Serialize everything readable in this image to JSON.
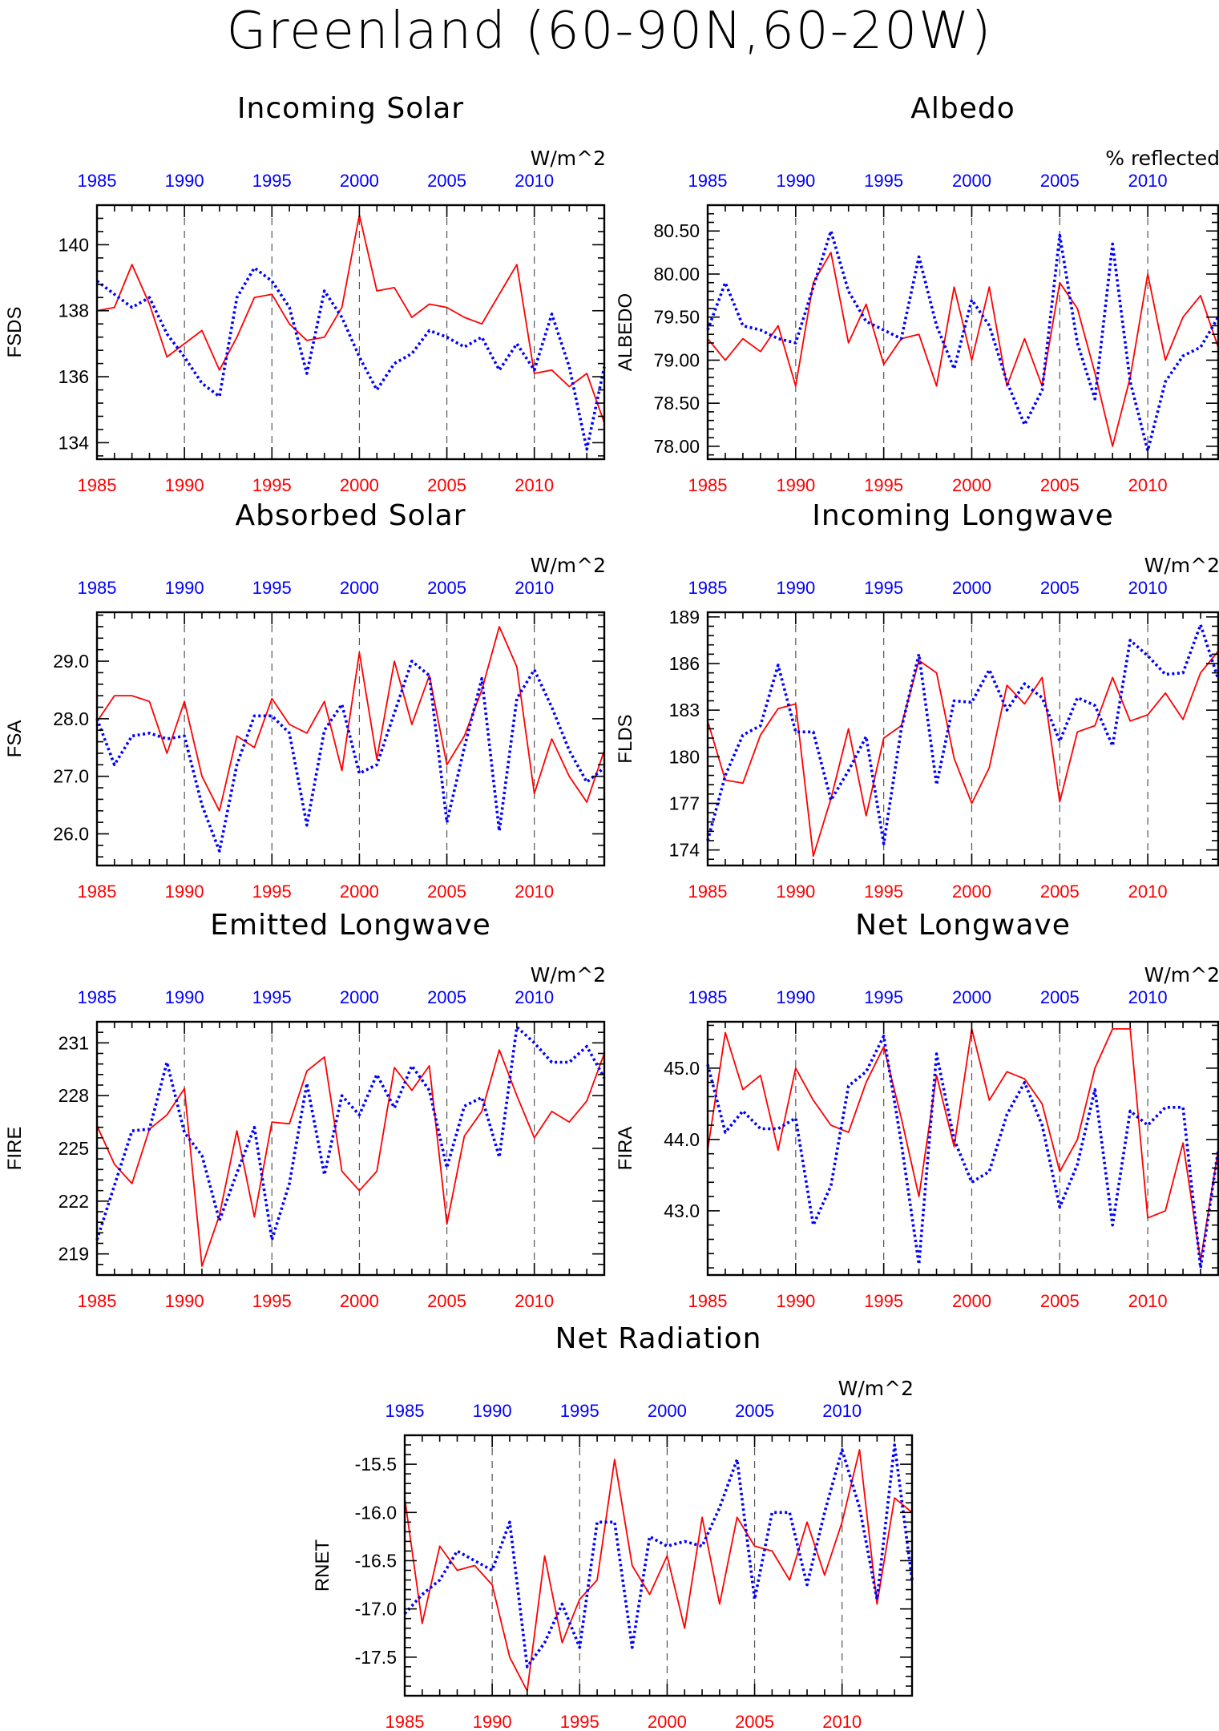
{
  "title": "Greenland (60-90N,60-20W)",
  "colors": {
    "series_a": "#ff0000",
    "series_b": "#0000ff",
    "frame": "#000000",
    "gridline": "#555555"
  },
  "chart_data": [
    {
      "id": "fsds",
      "type": "line",
      "title": "Incoming Solar",
      "unit": "W/m^2",
      "ylabel": "FSDS",
      "xlim": [
        1985,
        2014
      ],
      "ylim": [
        133.5,
        141.2
      ],
      "yticks": [
        134,
        136,
        138,
        140
      ],
      "ytick_labels": [
        "134",
        "136",
        "138",
        "140"
      ],
      "xticks": [
        1985,
        1990,
        1995,
        2000,
        2005,
        2010
      ],
      "xtick_labels": [
        "1985",
        "1990",
        "1995",
        "2000",
        "2005",
        "2010"
      ],
      "x": [
        1985,
        1986,
        1987,
        1988,
        1989,
        1990,
        1991,
        1992,
        1993,
        1994,
        1995,
        1996,
        1997,
        1998,
        1999,
        2000,
        2001,
        2002,
        2003,
        2004,
        2005,
        2006,
        2007,
        2008,
        2009,
        2010,
        2011,
        2012,
        2013,
        2014
      ],
      "series": [
        {
          "values": [
            138.0,
            138.1,
            139.4,
            138.2,
            136.6,
            137.0,
            137.4,
            136.2,
            137.2,
            138.4,
            138.5,
            137.6,
            137.1,
            137.2,
            138.1,
            140.9,
            138.6,
            138.7,
            137.8,
            138.2,
            138.1,
            137.8,
            137.6,
            138.5,
            139.4,
            136.1,
            136.2,
            135.7,
            136.1,
            134.6
          ]
        },
        {
          "values": [
            138.9,
            138.5,
            138.1,
            138.4,
            137.3,
            136.6,
            135.8,
            135.4,
            138.4,
            139.3,
            138.9,
            138.1,
            136.1,
            138.6,
            137.8,
            136.6,
            135.6,
            136.4,
            136.7,
            137.4,
            137.2,
            136.9,
            137.2,
            136.2,
            137.0,
            136.2,
            137.9,
            136.3,
            133.8,
            136.3
          ]
        }
      ]
    },
    {
      "id": "albedo",
      "type": "line",
      "title": "Albedo",
      "unit": "% reflected",
      "ylabel": "ALBEDO",
      "xlim": [
        1985,
        2014
      ],
      "ylim": [
        77.85,
        80.8
      ],
      "yticks": [
        78.0,
        78.5,
        79.0,
        79.5,
        80.0,
        80.5
      ],
      "ytick_labels": [
        "78.00",
        "78.50",
        "79.00",
        "79.50",
        "80.00",
        "80.50"
      ],
      "xticks": [
        1985,
        1990,
        1995,
        2000,
        2005,
        2010
      ],
      "xtick_labels": [
        "1985",
        "1990",
        "1995",
        "2000",
        "2005",
        "2010"
      ],
      "x": [
        1985,
        1986,
        1987,
        1988,
        1989,
        1990,
        1991,
        1992,
        1993,
        1994,
        1995,
        1996,
        1997,
        1998,
        1999,
        2000,
        2001,
        2002,
        2003,
        2004,
        2005,
        2006,
        2007,
        2008,
        2009,
        2010,
        2011,
        2012,
        2013,
        2014
      ],
      "series": [
        {
          "values": [
            79.25,
            79.0,
            79.25,
            79.1,
            79.4,
            78.7,
            79.9,
            80.25,
            79.2,
            79.65,
            78.95,
            79.25,
            79.3,
            78.7,
            79.85,
            79.0,
            79.85,
            78.7,
            79.25,
            78.7,
            79.9,
            79.6,
            78.85,
            78.0,
            78.8,
            80.0,
            79.0,
            79.5,
            79.75,
            79.15
          ]
        },
        {
          "values": [
            79.35,
            79.9,
            79.4,
            79.35,
            79.25,
            79.2,
            79.85,
            80.5,
            79.8,
            79.45,
            79.35,
            79.25,
            80.2,
            79.4,
            78.9,
            79.7,
            79.4,
            78.75,
            78.25,
            78.65,
            80.45,
            79.2,
            78.55,
            80.35,
            78.75,
            77.95,
            78.75,
            79.05,
            79.15,
            79.5
          ]
        }
      ]
    },
    {
      "id": "fsa",
      "type": "line",
      "title": "Absorbed Solar",
      "unit": "W/m^2",
      "ylabel": "FSA",
      "xlim": [
        1985,
        2014
      ],
      "ylim": [
        25.45,
        29.85
      ],
      "yticks": [
        26.0,
        27.0,
        28.0,
        29.0
      ],
      "ytick_labels": [
        "26.0",
        "27.0",
        "28.0",
        "29.0"
      ],
      "xticks": [
        1985,
        1990,
        1995,
        2000,
        2005,
        2010
      ],
      "xtick_labels": [
        "1985",
        "1990",
        "1995",
        "2000",
        "2005",
        "2010"
      ],
      "x": [
        1985,
        1986,
        1987,
        1988,
        1989,
        1990,
        1991,
        1992,
        1993,
        1994,
        1995,
        1996,
        1997,
        1998,
        1999,
        2000,
        2001,
        2002,
        2003,
        2004,
        2005,
        2006,
        2007,
        2008,
        2009,
        2010,
        2011,
        2012,
        2013,
        2014
      ],
      "series": [
        {
          "values": [
            27.95,
            28.4,
            28.4,
            28.3,
            27.4,
            28.3,
            27.0,
            26.4,
            27.7,
            27.5,
            28.35,
            27.9,
            27.75,
            28.3,
            27.1,
            29.15,
            27.3,
            29.0,
            27.9,
            28.75,
            27.2,
            27.7,
            28.5,
            29.6,
            28.9,
            26.7,
            27.65,
            27.0,
            26.55,
            27.45
          ]
        },
        {
          "values": [
            28.0,
            27.2,
            27.7,
            27.75,
            27.65,
            27.7,
            26.5,
            25.7,
            27.2,
            28.05,
            28.05,
            27.75,
            26.15,
            27.8,
            28.25,
            27.05,
            27.2,
            28.1,
            29.0,
            28.75,
            26.2,
            27.5,
            28.7,
            26.05,
            28.35,
            28.85,
            28.2,
            27.45,
            26.9,
            27.15
          ]
        }
      ]
    },
    {
      "id": "flds",
      "type": "line",
      "title": "Incoming Longwave",
      "unit": "W/m^2",
      "ylabel": "FLDS",
      "xlim": [
        1985,
        2014
      ],
      "ylim": [
        173.0,
        189.3
      ],
      "yticks": [
        174,
        177,
        180,
        183,
        186,
        189
      ],
      "ytick_labels": [
        "174",
        "177",
        "180",
        "183",
        "186",
        "189"
      ],
      "xticks": [
        1985,
        1990,
        1995,
        2000,
        2005,
        2010
      ],
      "xtick_labels": [
        "1985",
        "1990",
        "1995",
        "2000",
        "2005",
        "2010"
      ],
      "x": [
        1985,
        1986,
        1987,
        1988,
        1989,
        1990,
        1991,
        1992,
        1993,
        1994,
        1995,
        1996,
        1997,
        1998,
        1999,
        2000,
        2001,
        2002,
        2003,
        2004,
        2005,
        2006,
        2007,
        2008,
        2009,
        2010,
        2011,
        2012,
        2013,
        2014
      ],
      "series": [
        {
          "values": [
            182.3,
            178.5,
            178.3,
            181.4,
            183.1,
            183.4,
            173.6,
            177.3,
            181.8,
            176.2,
            181.2,
            182.0,
            186.2,
            185.4,
            179.9,
            177.0,
            179.3,
            184.6,
            183.4,
            185.1,
            177.1,
            181.6,
            182.0,
            185.1,
            182.3,
            182.7,
            184.1,
            182.4,
            185.4,
            186.8
          ]
        },
        {
          "values": [
            174.6,
            178.8,
            181.4,
            182.0,
            185.9,
            181.6,
            181.6,
            177.2,
            179.1,
            181.3,
            174.4,
            181.8,
            186.6,
            178.2,
            183.6,
            183.5,
            185.6,
            183.0,
            184.7,
            183.8,
            181.0,
            183.8,
            183.3,
            180.7,
            187.5,
            186.5,
            185.3,
            185.4,
            188.5,
            185.0
          ]
        }
      ]
    },
    {
      "id": "fire",
      "type": "line",
      "title": "Emitted Longwave",
      "unit": "W/m^2",
      "ylabel": "FIRE",
      "xlim": [
        1985,
        2014
      ],
      "ylim": [
        217.8,
        232.2
      ],
      "yticks": [
        219,
        222,
        225,
        228,
        231
      ],
      "ytick_labels": [
        "219",
        "222",
        "225",
        "228",
        "231"
      ],
      "xticks": [
        1985,
        1990,
        1995,
        2000,
        2005,
        2010
      ],
      "xtick_labels": [
        "1985",
        "1990",
        "1995",
        "2000",
        "2005",
        "2010"
      ],
      "x": [
        1985,
        1986,
        1987,
        1988,
        1989,
        1990,
        1991,
        1992,
        1993,
        1994,
        1995,
        1996,
        1997,
        1998,
        1999,
        2000,
        2001,
        2002,
        2003,
        2004,
        2005,
        2006,
        2007,
        2008,
        2009,
        2010,
        2011,
        2012,
        2013,
        2014
      ],
      "series": [
        {
          "values": [
            226.3,
            224.1,
            223.0,
            226.1,
            226.9,
            228.4,
            218.3,
            221.2,
            226.0,
            221.1,
            226.5,
            226.4,
            229.4,
            230.2,
            223.7,
            222.6,
            223.7,
            229.6,
            228.3,
            229.7,
            220.7,
            225.7,
            227.1,
            230.6,
            228.0,
            225.6,
            227.1,
            226.5,
            227.7,
            230.4
          ]
        },
        {
          "values": [
            219.8,
            222.9,
            226.0,
            226.1,
            229.9,
            225.9,
            224.6,
            220.9,
            223.6,
            226.2,
            219.8,
            223.0,
            228.7,
            223.5,
            228.0,
            226.9,
            229.2,
            227.3,
            229.7,
            228.3,
            223.9,
            227.4,
            227.9,
            224.5,
            231.9,
            231.0,
            229.9,
            229.9,
            230.8,
            229.0
          ]
        }
      ]
    },
    {
      "id": "fira",
      "type": "line",
      "title": "Net Longwave",
      "unit": "W/m^2",
      "ylabel": "FIRA",
      "xlim": [
        1985,
        2014
      ],
      "ylim": [
        42.1,
        45.65
      ],
      "yticks": [
        43.0,
        44.0,
        45.0
      ],
      "ytick_labels": [
        "43.0",
        "44.0",
        "45.0"
      ],
      "xticks": [
        1985,
        1990,
        1995,
        2000,
        2005,
        2010
      ],
      "xtick_labels": [
        "1985",
        "1990",
        "1995",
        "2000",
        "2005",
        "2010"
      ],
      "x": [
        1985,
        1986,
        1987,
        1988,
        1989,
        1990,
        1991,
        1992,
        1993,
        1994,
        1995,
        1996,
        1997,
        1998,
        1999,
        2000,
        2001,
        2002,
        2003,
        2004,
        2005,
        2006,
        2007,
        2008,
        2009,
        2010,
        2011,
        2012,
        2013,
        2014
      ],
      "series": [
        {
          "values": [
            43.85,
            45.5,
            44.7,
            44.9,
            43.85,
            45.0,
            44.55,
            44.2,
            44.1,
            44.8,
            45.3,
            44.3,
            43.2,
            44.9,
            43.9,
            45.55,
            44.55,
            44.95,
            44.85,
            44.5,
            43.55,
            44.0,
            45.0,
            45.55,
            45.55,
            42.9,
            43.0,
            43.95,
            42.3,
            43.85
          ]
        },
        {
          "values": [
            45.05,
            44.1,
            44.4,
            44.15,
            44.15,
            44.3,
            42.8,
            43.35,
            44.75,
            44.95,
            45.45,
            43.95,
            42.25,
            45.2,
            44.0,
            43.4,
            43.55,
            44.35,
            44.8,
            44.2,
            43.05,
            43.65,
            44.7,
            42.8,
            44.4,
            44.2,
            44.45,
            44.45,
            42.2,
            43.85
          ]
        }
      ]
    },
    {
      "id": "rnet",
      "type": "line",
      "title": "Net Radiation",
      "unit": "W/m^2",
      "ylabel": "RNET",
      "xlim": [
        1985,
        2014
      ],
      "ylim": [
        -17.9,
        -15.2
      ],
      "yticks": [
        -17.5,
        -17.0,
        -16.5,
        -16.0,
        -15.5
      ],
      "ytick_labels": [
        "-17.5",
        "-17.0",
        "-16.5",
        "-16.0",
        "-15.5"
      ],
      "xticks": [
        1985,
        1990,
        1995,
        2000,
        2005,
        2010
      ],
      "xtick_labels": [
        "1985",
        "1990",
        "1995",
        "2000",
        "2005",
        "2010"
      ],
      "x": [
        1985,
        1986,
        1987,
        1988,
        1989,
        1990,
        1991,
        1992,
        1993,
        1994,
        1995,
        1996,
        1997,
        1998,
        1999,
        2000,
        2001,
        2002,
        2003,
        2004,
        2005,
        2006,
        2007,
        2008,
        2009,
        2010,
        2011,
        2012,
        2013,
        2014
      ],
      "series": [
        {
          "values": [
            -15.85,
            -17.15,
            -16.35,
            -16.6,
            -16.55,
            -16.75,
            -17.5,
            -17.85,
            -16.45,
            -17.35,
            -16.9,
            -16.7,
            -15.45,
            -16.55,
            -16.85,
            -16.45,
            -17.2,
            -16.05,
            -16.95,
            -16.05,
            -16.35,
            -16.4,
            -16.7,
            -16.1,
            -16.65,
            -16.1,
            -15.35,
            -16.95,
            -15.85,
            -16.0
          ]
        },
        {
          "values": [
            -17.05,
            -16.85,
            -16.7,
            -16.4,
            -16.5,
            -16.6,
            -16.1,
            -17.6,
            -17.35,
            -16.95,
            -17.4,
            -16.1,
            -16.1,
            -17.4,
            -16.25,
            -16.35,
            -16.3,
            -16.35,
            -15.95,
            -15.45,
            -16.9,
            -16.0,
            -16.0,
            -16.75,
            -16.0,
            -15.35,
            -15.95,
            -16.9,
            -15.3,
            -16.7
          ]
        }
      ]
    }
  ]
}
